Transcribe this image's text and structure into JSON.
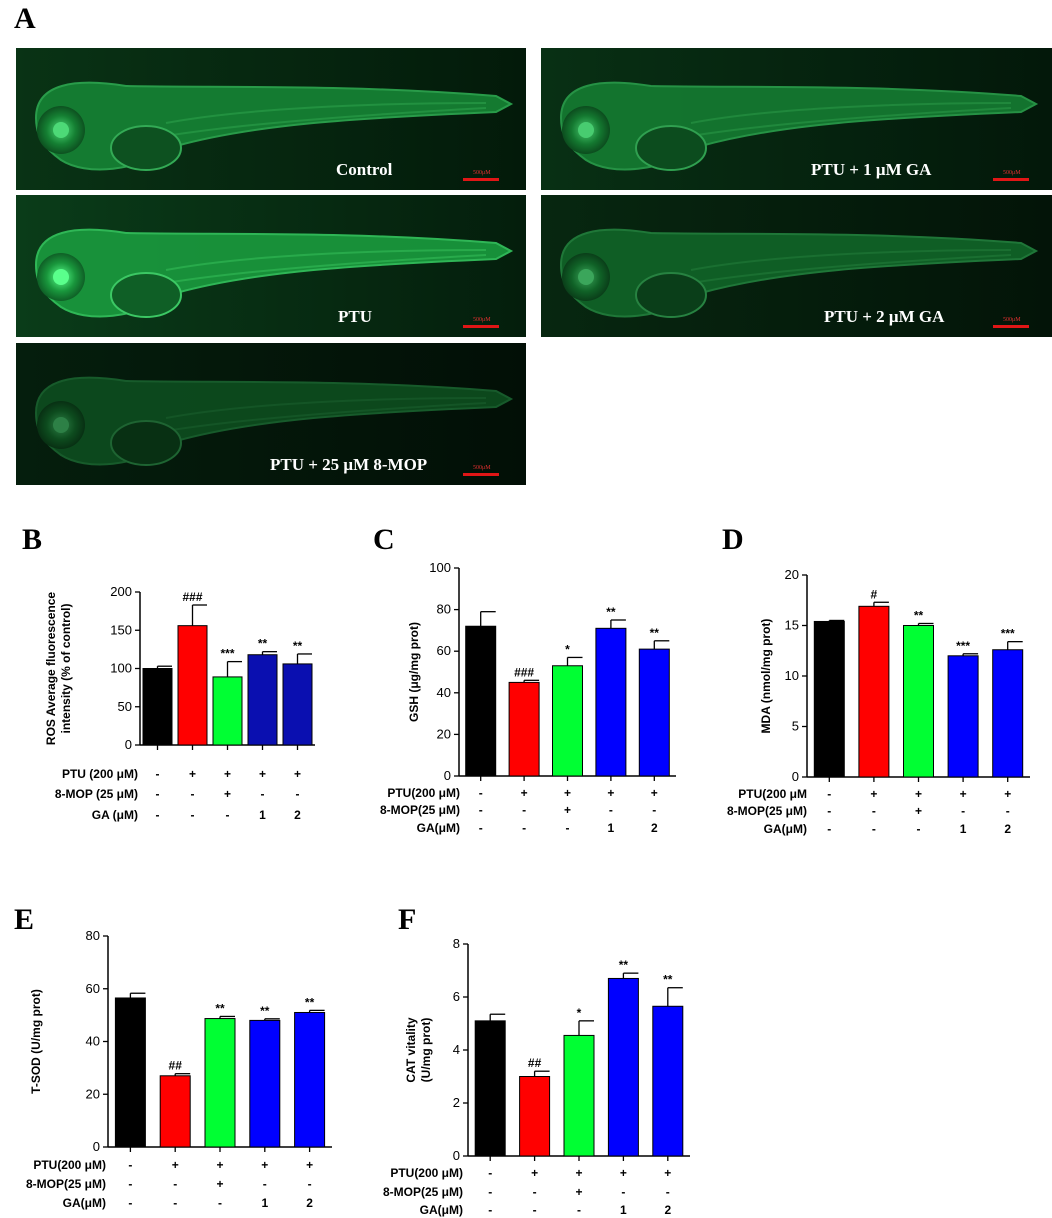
{
  "panels": {
    "A": "A",
    "B": "B",
    "C": "C",
    "D": "D",
    "E": "E",
    "F": "F"
  },
  "micrographs": [
    {
      "label": "Control",
      "scale": "500μM",
      "brightness": 0.85
    },
    {
      "label": "PTU + 1 μM GA",
      "scale": "500μM",
      "brightness": 0.8
    },
    {
      "label": "PTU",
      "scale": "500μM",
      "brightness": 1.0
    },
    {
      "label": "PTU + 2 μM GA",
      "scale": "500μM",
      "brightness": 0.65
    },
    {
      "label": "PTU + 25 μM 8-MOP",
      "scale": "500μM",
      "brightness": 0.5
    }
  ],
  "colors": {
    "black": "#000000",
    "red": "#ff0000",
    "green": "#00ff33",
    "dark_blue": "#0a0fb0",
    "blue": "#0000ff"
  },
  "chart_data": [
    {
      "id": "B",
      "type": "bar",
      "ylabel": "ROS Average fluorescence\nintensity (% of control)",
      "ylim": [
        0,
        200
      ],
      "yticks": [
        0,
        50,
        100,
        150,
        200
      ],
      "values": [
        100,
        156,
        89,
        118,
        106
      ],
      "errors": [
        3,
        27,
        20,
        4,
        13
      ],
      "annotations": [
        "",
        "###",
        "***",
        "**",
        "**"
      ],
      "bar_colors": [
        "#000000",
        "#ff0000",
        "#00ff33",
        "#0a0fb0",
        "#0a0fb0"
      ],
      "row_labels": [
        "PTU (200 μM)",
        "8-MOP (25 μM)",
        "GA (μM)"
      ],
      "rows": [
        [
          "-",
          "+",
          "+",
          "+",
          "+"
        ],
        [
          "-",
          "-",
          "+",
          "-",
          "-"
        ],
        [
          "-",
          "-",
          "-",
          "1",
          "2"
        ]
      ]
    },
    {
      "id": "C",
      "type": "bar",
      "ylabel": "GSH (μg/mg prot)",
      "ylim": [
        0,
        100
      ],
      "yticks": [
        0,
        20,
        40,
        60,
        80,
        100
      ],
      "values": [
        72,
        45,
        53,
        71,
        61
      ],
      "errors": [
        7,
        1,
        4,
        4,
        4
      ],
      "annotations": [
        "",
        "###",
        "*",
        "**",
        "**"
      ],
      "bar_colors": [
        "#000000",
        "#ff0000",
        "#00ff33",
        "#0000ff",
        "#0000ff"
      ],
      "row_labels": [
        "PTU(200 μM)",
        "8-MOP(25 μM)",
        "GA(μM)"
      ],
      "rows": [
        [
          "-",
          "+",
          "+",
          "+",
          "+"
        ],
        [
          "-",
          "-",
          "+",
          "-",
          "-"
        ],
        [
          "-",
          "-",
          "-",
          "1",
          "2"
        ]
      ]
    },
    {
      "id": "D",
      "type": "bar",
      "ylabel": "MDA  (nmol/mg prot)",
      "ylim": [
        0,
        20
      ],
      "yticks": [
        0,
        5,
        10,
        15,
        20
      ],
      "values": [
        15.4,
        16.9,
        15.0,
        12.0,
        12.6
      ],
      "errors": [
        0.1,
        0.4,
        0.2,
        0.2,
        0.8
      ],
      "annotations": [
        "",
        "#",
        "**",
        "***",
        "***"
      ],
      "bar_colors": [
        "#000000",
        "#ff0000",
        "#00ff33",
        "#0000ff",
        "#0000ff"
      ],
      "row_labels": [
        "PTU(200 μM",
        "8-MOP(25 μM)",
        "GA(μM)"
      ],
      "rows": [
        [
          "-",
          "+",
          "+",
          "+",
          "+"
        ],
        [
          "-",
          "-",
          "+",
          "-",
          "-"
        ],
        [
          "-",
          "-",
          "-",
          "1",
          "2"
        ]
      ]
    },
    {
      "id": "E",
      "type": "bar",
      "ylabel": "T-SOD  (U/mg prot)",
      "ylim": [
        0,
        80
      ],
      "yticks": [
        0,
        20,
        40,
        60,
        80
      ],
      "values": [
        56.5,
        27,
        48.7,
        48,
        51
      ],
      "errors": [
        1.8,
        0.8,
        0.8,
        0.6,
        0.8
      ],
      "annotations": [
        "",
        "##",
        "**",
        "**",
        "**"
      ],
      "bar_colors": [
        "#000000",
        "#ff0000",
        "#00ff33",
        "#0000ff",
        "#0000ff"
      ],
      "row_labels": [
        "PTU(200 μM)",
        "8-MOP(25 μM)",
        "GA(μM)"
      ],
      "rows": [
        [
          "-",
          "+",
          "+",
          "+",
          "+"
        ],
        [
          "-",
          "-",
          "+",
          "-",
          "-"
        ],
        [
          "-",
          "-",
          "-",
          "1",
          "2"
        ]
      ]
    },
    {
      "id": "F",
      "type": "bar",
      "ylabel": "CAT vitality\n(U/mg prot)",
      "ylim": [
        0,
        8
      ],
      "yticks": [
        0,
        2,
        4,
        6,
        8
      ],
      "values": [
        5.1,
        3.0,
        4.55,
        6.7,
        5.65
      ],
      "errors": [
        0.25,
        0.2,
        0.55,
        0.2,
        0.7
      ],
      "annotations": [
        "",
        "##",
        "*",
        "**",
        "**"
      ],
      "bar_colors": [
        "#000000",
        "#ff0000",
        "#00ff33",
        "#0000ff",
        "#0000ff"
      ],
      "row_labels": [
        "PTU(200 μM)",
        "8-MOP(25 μM)",
        "GA(μM)"
      ],
      "rows": [
        [
          "-",
          "+",
          "+",
          "+",
          "+"
        ],
        [
          "-",
          "-",
          "+",
          "-",
          "-"
        ],
        [
          "-",
          "-",
          "-",
          "1",
          "2"
        ]
      ]
    }
  ]
}
